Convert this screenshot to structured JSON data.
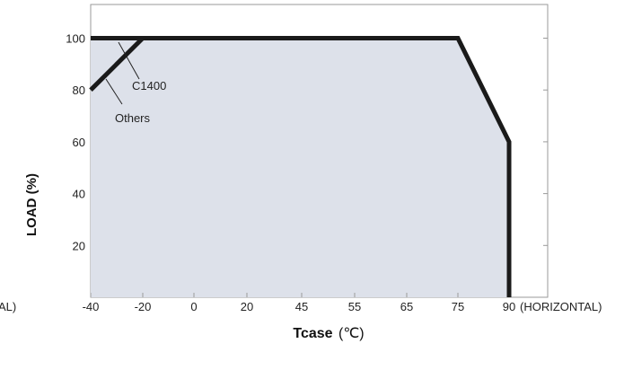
{
  "chart_data": {
    "type": "line",
    "title": "",
    "xlabel": "Tcase",
    "xlabel_unit": "(℃)",
    "ylabel": "LOAD (%)",
    "x_ticks": [
      "-40",
      "-20",
      "0",
      "20",
      "45",
      "55",
      "65",
      "75",
      "90"
    ],
    "x_suffix_right": "(HORIZONTAL)",
    "x_suffix_left": "AL)",
    "y_ticks": [
      "20",
      "40",
      "60",
      "80",
      "100"
    ],
    "ylim": [
      0,
      113
    ],
    "grid": false,
    "fill_color": "#dde1ea",
    "line_color": "#1a1a1a",
    "series": [
      {
        "name": "C1400",
        "points": [
          {
            "x": "-40",
            "y": 100
          },
          {
            "x": "75",
            "y": 100
          },
          {
            "x": "90",
            "y": 60
          },
          {
            "x": "90",
            "y": 0
          }
        ]
      },
      {
        "name": "Others",
        "points": [
          {
            "x": "-40",
            "y": 80
          },
          {
            "x": "-20",
            "y": 100
          }
        ]
      }
    ],
    "annotations": [
      {
        "text": "C1400",
        "target_series": "C1400"
      },
      {
        "text": "Others",
        "target_series": "Others"
      }
    ]
  }
}
